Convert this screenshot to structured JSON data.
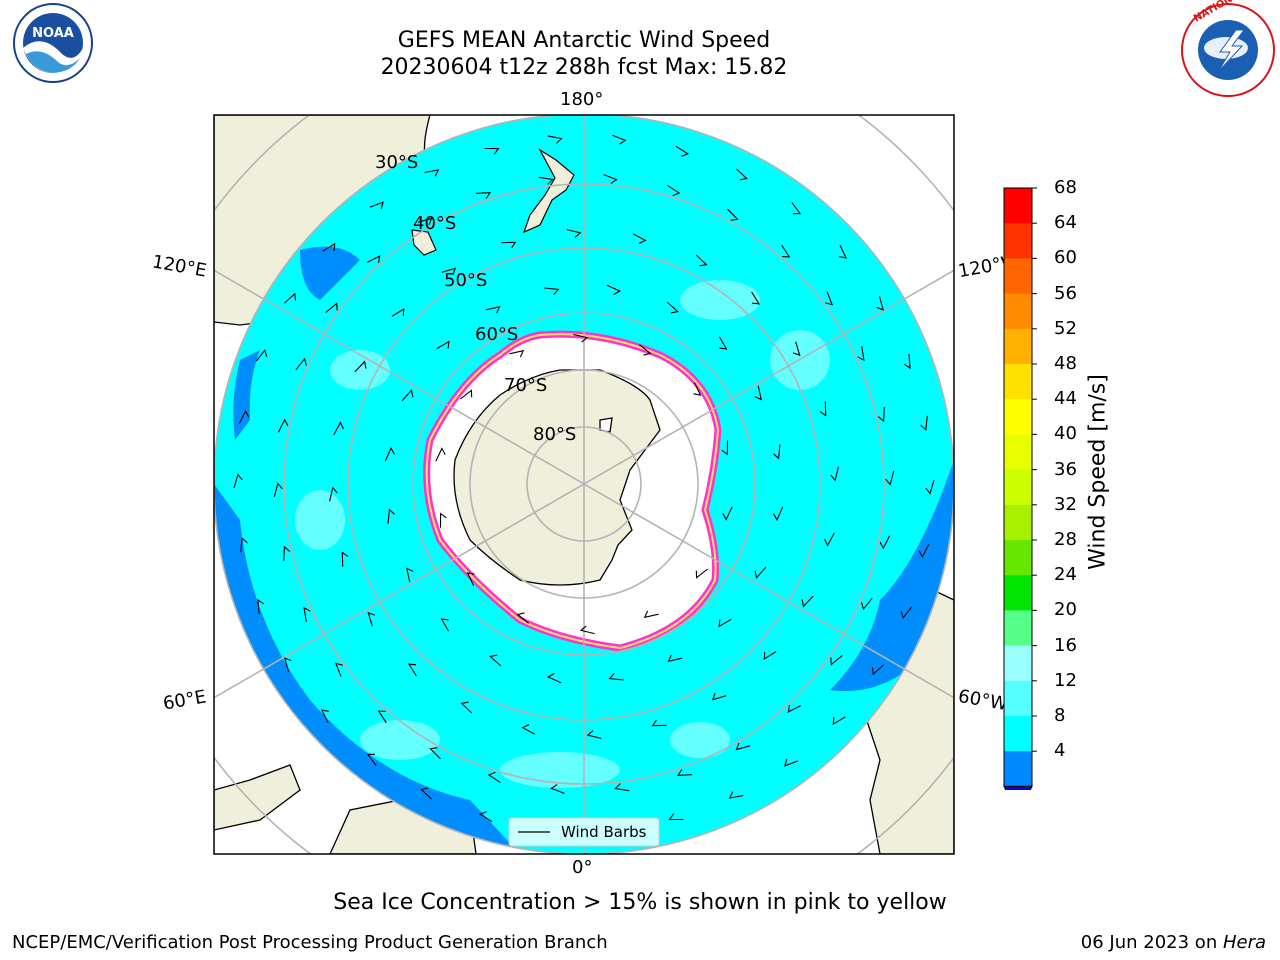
{
  "title_line1": "GEFS MEAN Antarctic Wind Speed",
  "title_line2": "20230604 t12z 288h fcst   Max: 15.82",
  "logo_left": {
    "text": "NOAA",
    "icon": "noaa-logo-icon"
  },
  "logo_right": {
    "text": "NATIONAL WEATHER SERVICE",
    "icon": "nws-logo-icon"
  },
  "lat_labels": [
    "30°S",
    "40°S",
    "50°S",
    "60°S",
    "70°S",
    "80°S"
  ],
  "lon_labels": {
    "top": "180°",
    "bottom": "0°",
    "upper_left": "120°E",
    "lower_left": "60°E",
    "upper_right": "120°W",
    "lower_right": "60°W"
  },
  "colorbar": {
    "title": "Wind Speed [m/s]",
    "ticks": [
      "68",
      "64",
      "60",
      "56",
      "52",
      "48",
      "44",
      "40",
      "36",
      "32",
      "28",
      "24",
      "20",
      "16",
      "12",
      "8",
      "4"
    ],
    "colors": [
      "#ff0000",
      "#ff3300",
      "#ff6600",
      "#ff8c00",
      "#ffb000",
      "#ffe000",
      "#ffff00",
      "#e8ff00",
      "#ccff00",
      "#a8f000",
      "#66e600",
      "#00e600",
      "#55ff88",
      "#99ffff",
      "#55ffff",
      "#00ffff",
      "#0088ff"
    ],
    "underflow_color": "#0000ee"
  },
  "legend_label": "Wind Barbs",
  "note": "Sea Ice Concentration > 15% is shown in pink to yellow",
  "footer_left": "NCEP/EMC/Verification Post Processing Product Generation Branch",
  "footer_date": "06 Jun 2023 on ",
  "footer_machine": "Hera"
}
